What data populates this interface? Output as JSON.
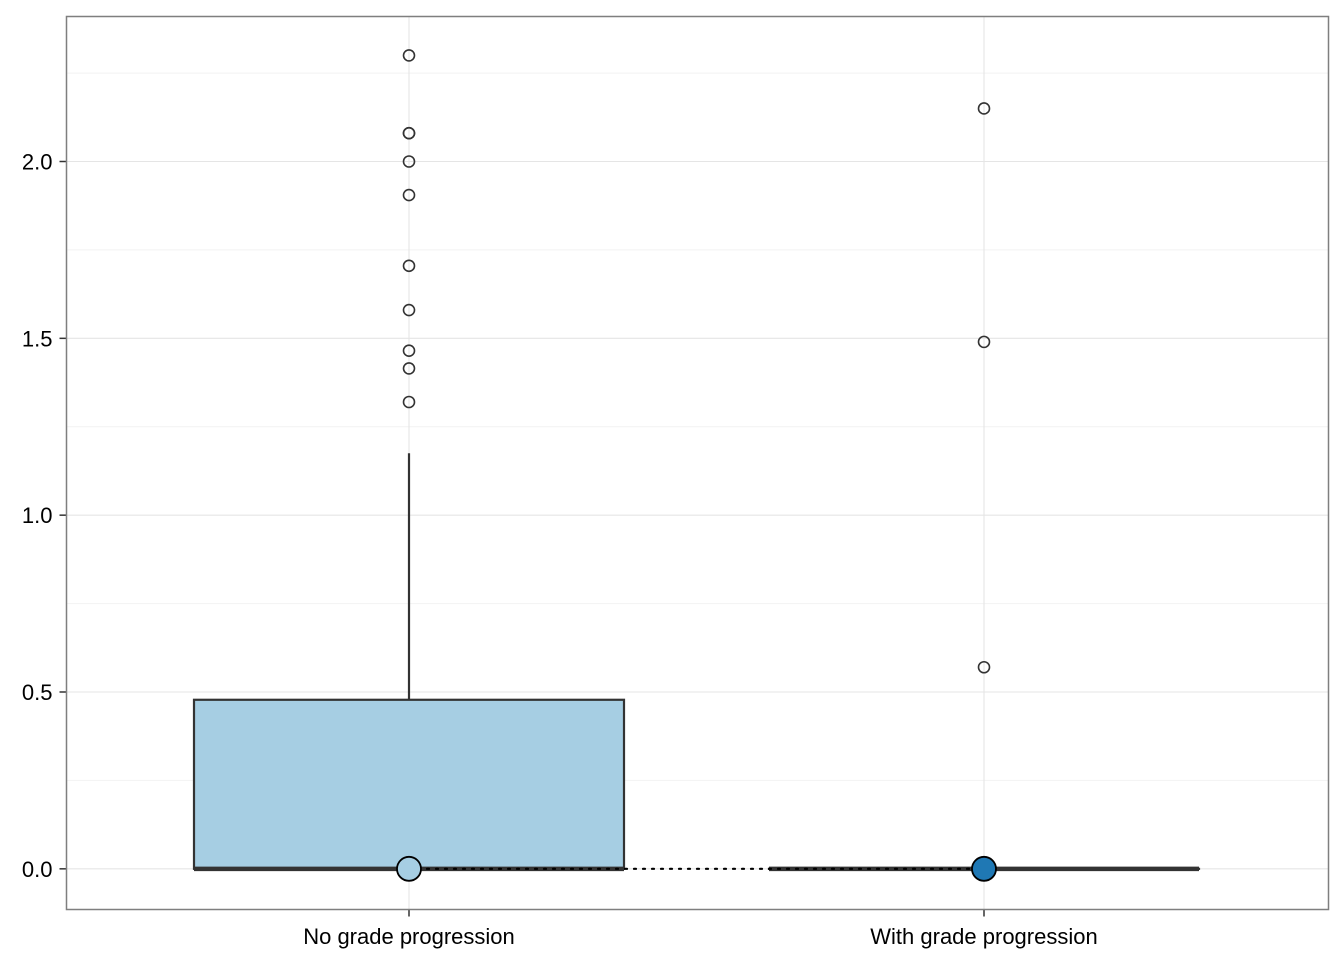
{
  "chart_data": {
    "type": "boxplot",
    "title": "",
    "xlabel": "",
    "ylabel": "",
    "categories": [
      "No grade progression",
      "With grade progression"
    ],
    "ylim": [
      -0.115,
      2.41
    ],
    "yticks": [
      0.0,
      0.5,
      1.0,
      1.5,
      2.0
    ],
    "ytick_labels": [
      "0.0",
      "0.5",
      "1.0",
      "1.5",
      "2.0"
    ],
    "grid": true,
    "legend": "none",
    "boxes": [
      {
        "category": "No grade progression",
        "min": 0.0,
        "q1": 0.0,
        "median": 0.0,
        "q3": 0.478,
        "max": 1.175,
        "outliers": [
          1.32,
          1.415,
          1.465,
          1.58,
          1.705,
          1.905,
          2.0,
          2.08,
          2.08,
          2.3
        ],
        "mean_marker": 0.0,
        "fill": "#a6cee3"
      },
      {
        "category": "With grade progression",
        "min": 0.0,
        "q1": 0.0,
        "median": 0.0,
        "q3": 0.0,
        "max": 0.0,
        "outliers": [
          0.57,
          1.49,
          2.15
        ],
        "mean_marker": 0.0,
        "fill": "#1f78b4"
      }
    ],
    "mean_connector": "dotted"
  }
}
